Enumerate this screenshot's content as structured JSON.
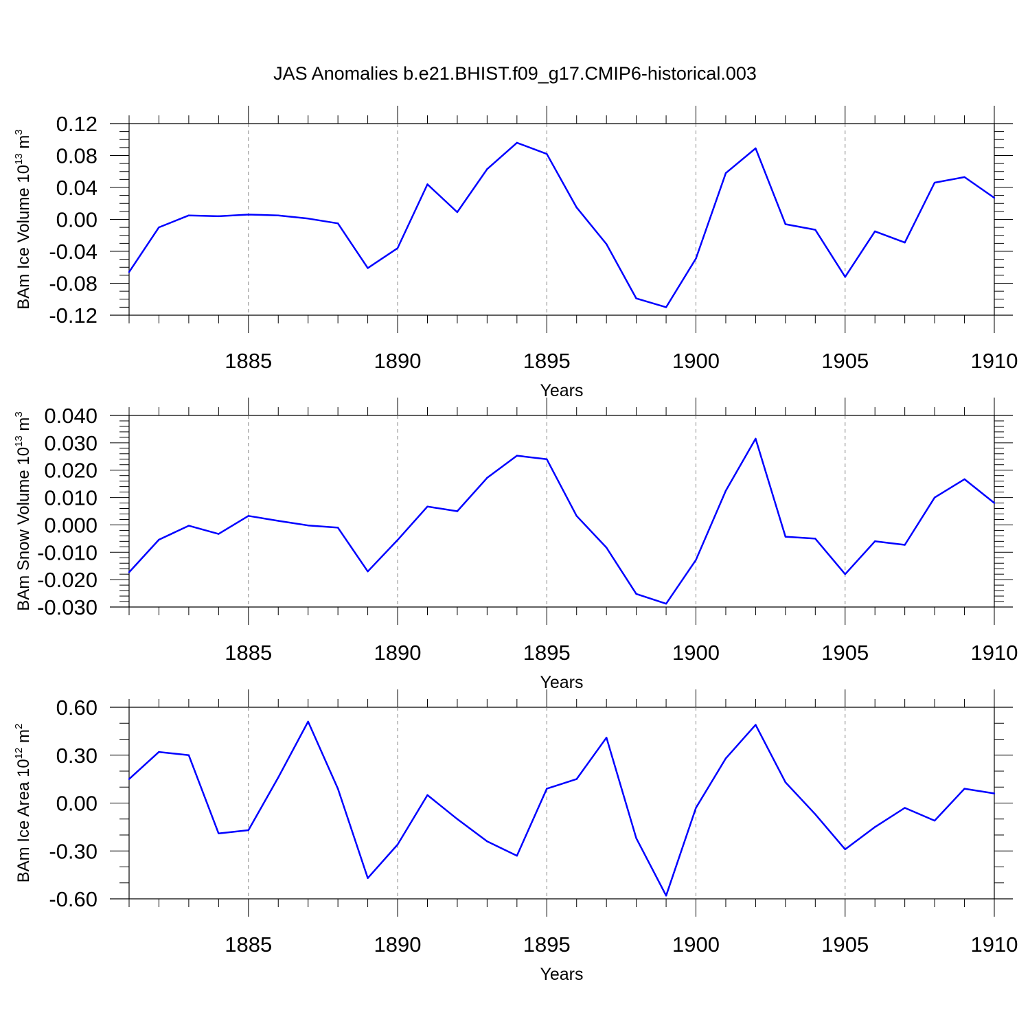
{
  "chart_data": {
    "type": "line",
    "title": "JAS Anomalies b.e21.BHIST.f09_g17.CMIP6-historical.003",
    "line_color": "#0000ff",
    "x": [
      1881,
      1882,
      1883,
      1884,
      1885,
      1886,
      1887,
      1888,
      1889,
      1890,
      1891,
      1892,
      1893,
      1894,
      1895,
      1896,
      1897,
      1898,
      1899,
      1900,
      1901,
      1902,
      1903,
      1904,
      1905,
      1906,
      1907,
      1908,
      1909,
      1910
    ],
    "xlim": [
      1881,
      1910
    ],
    "xticks": [
      "1885",
      "1890",
      "1895",
      "1900",
      "1905",
      "1910"
    ],
    "panels": [
      {
        "ylabel": "BAm Ice Volume 10",
        "ylabel_exp": "13",
        "ylabel_unit": "m",
        "ylabel_unit_exp": "3",
        "xlabel": "Years",
        "ylim": [
          -0.12,
          0.12
        ],
        "yticks": [
          "-0.12",
          "-0.08",
          "-0.04",
          "0.00",
          "0.04",
          "0.08",
          "0.12"
        ],
        "values": [
          -0.066,
          -0.01,
          0.005,
          0.004,
          0.006,
          0.005,
          0.001,
          -0.005,
          -0.061,
          -0.036,
          0.044,
          0.009,
          0.063,
          0.096,
          0.082,
          0.015,
          -0.031,
          -0.099,
          -0.11,
          -0.049,
          0.058,
          0.089,
          -0.006,
          -0.013,
          -0.072,
          -0.015,
          -0.029,
          0.046,
          0.053,
          0.027
        ]
      },
      {
        "ylabel": "BAm Snow Volume 10",
        "ylabel_exp": "13",
        "ylabel_unit": "m",
        "ylabel_unit_exp": "3",
        "xlabel": "Years",
        "ylim": [
          -0.03,
          0.04
        ],
        "yticks": [
          "-0.030",
          "-0.020",
          "-0.010",
          "0.000",
          "0.010",
          "0.020",
          "0.030",
          "0.040"
        ],
        "values": [
          -0.0173,
          -0.0054,
          -0.0003,
          -0.0033,
          0.0033,
          0.0015,
          -0.0002,
          -0.001,
          -0.017,
          -0.0055,
          0.0067,
          0.005,
          0.0172,
          0.0253,
          0.024,
          0.0033,
          -0.0083,
          -0.0252,
          -0.0288,
          -0.0128,
          0.0125,
          0.0315,
          -0.0043,
          -0.005,
          -0.018,
          -0.006,
          -0.0073,
          0.01,
          0.0167,
          0.008
        ]
      },
      {
        "ylabel": "BAm Ice Area 10",
        "ylabel_exp": "12",
        "ylabel_unit": "m",
        "ylabel_unit_exp": "2",
        "xlabel": "Years",
        "ylim": [
          -0.6,
          0.6
        ],
        "yticks": [
          "-0.60",
          "-0.30",
          "0.00",
          "0.30",
          "0.60"
        ],
        "values": [
          0.15,
          0.32,
          0.3,
          -0.19,
          -0.17,
          0.16,
          0.51,
          0.09,
          -0.47,
          -0.26,
          0.05,
          -0.1,
          -0.24,
          -0.33,
          0.09,
          0.15,
          0.41,
          -0.22,
          -0.58,
          -0.03,
          0.28,
          0.49,
          0.13,
          -0.07,
          -0.29,
          -0.15,
          -0.03,
          -0.11,
          0.09,
          0.06
        ]
      }
    ]
  }
}
